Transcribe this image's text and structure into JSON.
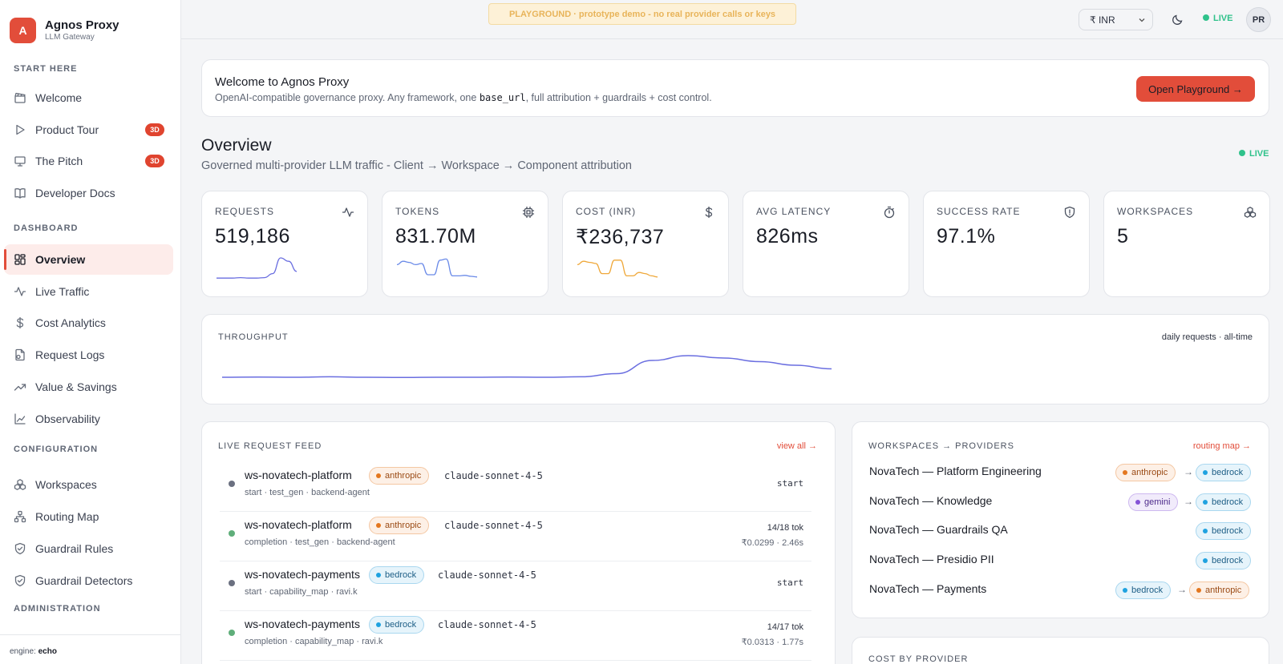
{
  "brand": {
    "logo_letter": "A",
    "name": "Agnos Proxy",
    "subtitle": "LLM Gateway"
  },
  "sidebar": {
    "sections": [
      {
        "title": "START HERE",
        "items": [
          {
            "label": "Welcome",
            "icon": "clapperboard-icon"
          },
          {
            "label": "Product Tour",
            "icon": "play-icon",
            "badge": "3D"
          },
          {
            "label": "The Pitch",
            "icon": "presentation-icon",
            "badge": "3D"
          },
          {
            "label": "Developer Docs",
            "icon": "book-icon"
          }
        ]
      },
      {
        "title": "DASHBOARD",
        "items": [
          {
            "label": "Overview",
            "icon": "grid-icon",
            "active": true
          },
          {
            "label": "Live Traffic",
            "icon": "activity-icon"
          },
          {
            "label": "Cost Analytics",
            "icon": "dollar-icon"
          },
          {
            "label": "Request Logs",
            "icon": "log-file-icon"
          },
          {
            "label": "Value & Savings",
            "icon": "trending-up-icon"
          },
          {
            "label": "Observability",
            "icon": "line-chart-icon"
          }
        ]
      },
      {
        "title": "CONFIGURATION",
        "items": [
          {
            "label": "Workspaces",
            "icon": "boxes-icon"
          },
          {
            "label": "Routing Map",
            "icon": "network-icon"
          },
          {
            "label": "Guardrail Rules",
            "icon": "shield-check-icon"
          },
          {
            "label": "Guardrail Detectors",
            "icon": "shield-check-icon"
          }
        ]
      },
      {
        "title": "ADMINISTRATION",
        "items": []
      }
    ],
    "engine_label": "engine:",
    "engine_value": "echo"
  },
  "topbar": {
    "banner": "PLAYGROUND · prototype demo - no real provider calls or keys",
    "currency": "₹ INR",
    "live": "LIVE",
    "avatar": "PR"
  },
  "welcome": {
    "title": "Welcome to Agnos Proxy",
    "desc_before": "OpenAI-compatible governance proxy. Any framework, one ",
    "desc_code": "base_url",
    "desc_after": ", full attribution + guardrails + cost control.",
    "button": "Open Playground →"
  },
  "overview": {
    "title": "Overview",
    "subtitle": "Governed multi-provider LLM traffic - Client → Workspace → Component attribution",
    "live": "LIVE"
  },
  "kpis": [
    {
      "label": "REQUESTS",
      "value": "519,186",
      "icon": "activity-icon",
      "spark_color": "#6a6ee0",
      "spark": [
        0.1,
        0.1,
        0.1,
        0.12,
        0.1,
        0.1,
        0.12,
        0.3,
        1.0,
        0.85,
        0.4
      ]
    },
    {
      "label": "TOKENS",
      "value": "831.70M",
      "icon": "chip-icon",
      "spark_color": "#6a8ae8",
      "spark": [
        0.7,
        0.85,
        0.8,
        0.7,
        0.75,
        0.25,
        0.25,
        0.9,
        0.95,
        0.2,
        0.2,
        0.22,
        0.18,
        0.15
      ]
    },
    {
      "label": "COST (INR)",
      "value": "₹236,737",
      "icon": "dollar-icon",
      "spark_color": "#efa83a",
      "spark": [
        0.7,
        0.85,
        0.8,
        0.75,
        0.3,
        0.3,
        0.9,
        0.9,
        0.2,
        0.2,
        0.35,
        0.3,
        0.2,
        0.15
      ]
    },
    {
      "label": "AVG LATENCY",
      "value": "826ms",
      "icon": "timer-icon"
    },
    {
      "label": "SUCCESS RATE",
      "value": "97.1%",
      "icon": "shield-icon"
    },
    {
      "label": "WORKSPACES",
      "value": "5",
      "icon": "boxes-icon"
    }
  ],
  "throughput": {
    "title": "THROUGHPUT",
    "meta": "daily requests · all-time",
    "color": "#6a6ee0",
    "values": [
      0.1,
      0.11,
      0.1,
      0.12,
      0.1,
      0.09,
      0.1,
      0.1,
      0.11,
      0.1,
      0.12,
      0.25,
      0.8,
      1.0,
      0.9,
      0.75,
      0.6,
      0.45
    ]
  },
  "feed": {
    "title": "LIVE REQUEST FEED",
    "link": "view all →",
    "rows": [
      {
        "ws": "ws-novatech-platform",
        "provider": "anthropic",
        "model": "claude-sonnet-4-5",
        "sub": "start · test_gen · backend-agent",
        "status": "start",
        "dot": "#6b7080"
      },
      {
        "ws": "ws-novatech-platform",
        "provider": "anthropic",
        "model": "claude-sonnet-4-5",
        "sub": "completion · test_gen · backend-agent",
        "tokens": "14/18 tok",
        "cost": "₹0.0299 · 2.46s",
        "dot": "#5fae7a"
      },
      {
        "ws": "ws-novatech-payments",
        "provider": "bedrock",
        "model": "claude-sonnet-4-5",
        "sub": "start · capability_map · ravi.k",
        "status": "start",
        "dot": "#6b7080"
      },
      {
        "ws": "ws-novatech-payments",
        "provider": "bedrock",
        "model": "claude-sonnet-4-5",
        "sub": "completion · capability_map · ravi.k",
        "tokens": "14/17 tok",
        "cost": "₹0.0313 · 1.77s",
        "dot": "#5fae7a"
      }
    ]
  },
  "workspaces": {
    "title": "WORKSPACES → PROVIDERS",
    "link": "routing map →",
    "arrow": "→",
    "rows": [
      {
        "name": "NovaTech — Platform Engineering",
        "providers": [
          "anthropic",
          "bedrock"
        ]
      },
      {
        "name": "NovaTech — Knowledge",
        "providers": [
          "gemini",
          "bedrock"
        ]
      },
      {
        "name": "NovaTech — Guardrails QA",
        "providers": [
          "bedrock"
        ]
      },
      {
        "name": "NovaTech — Presidio PII",
        "providers": [
          "bedrock"
        ]
      },
      {
        "name": "NovaTech — Payments",
        "providers": [
          "bedrock",
          "anthropic"
        ]
      }
    ]
  },
  "cost_by_provider": {
    "title": "COST BY PROVIDER"
  }
}
